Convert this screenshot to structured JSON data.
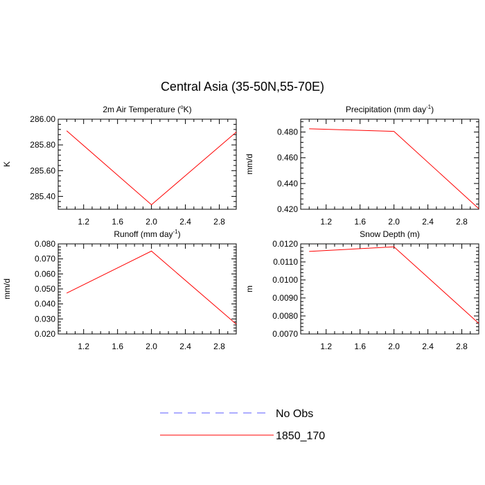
{
  "title": "Central Asia (35-50N,55-70E)",
  "legend": [
    {
      "name": "No Obs",
      "color": "#5a5aff",
      "style": "dashed"
    },
    {
      "name": "1850_170",
      "color": "#ff0000",
      "style": "solid"
    }
  ],
  "chart_data": [
    {
      "type": "line",
      "title": "2m Air Temperature (°K)",
      "title_main": "2m Air Temperature (",
      "title_sup": "o",
      "title_end": "K)",
      "xlabel": "",
      "ylabel": "K",
      "xlim": [
        0.9,
        3.0
      ],
      "ylim": [
        285.3,
        286.0
      ],
      "xticks": [
        "1.2",
        "1.6",
        "2.0",
        "2.4",
        "2.8"
      ],
      "yticks": [
        "285.40",
        "285.60",
        "285.80",
        "286.00"
      ],
      "series": [
        {
          "name": "1850_170",
          "x": [
            1,
            2,
            3
          ],
          "y": [
            285.91,
            285.335,
            285.9
          ],
          "color": "#ff0000"
        }
      ]
    },
    {
      "type": "line",
      "title": "Precipitation (mm day-1)",
      "title_main": "Precipitation (mm day",
      "title_sup": "-1",
      "title_end": ")",
      "xlabel": "",
      "ylabel": "mm/d",
      "xlim": [
        0.9,
        3.0
      ],
      "ylim": [
        0.42,
        0.49
      ],
      "xticks": [
        "1.2",
        "1.6",
        "2.0",
        "2.4",
        "2.8"
      ],
      "yticks": [
        "0.420",
        "0.440",
        "0.460",
        "0.480"
      ],
      "series": [
        {
          "name": "1850_170",
          "x": [
            1,
            2,
            3
          ],
          "y": [
            0.4825,
            0.4805,
            0.4205
          ],
          "color": "#ff0000"
        }
      ]
    },
    {
      "type": "line",
      "title": "Runoff (mm day-1)",
      "title_main": "Runoff (mm day",
      "title_sup": "-1",
      "title_end": ")",
      "xlabel": "",
      "ylabel": "mm/d",
      "xlim": [
        0.9,
        3.0
      ],
      "ylim": [
        0.02,
        0.08
      ],
      "xticks": [
        "1.2",
        "1.6",
        "2.0",
        "2.4",
        "2.8"
      ],
      "yticks": [
        "0.020",
        "0.030",
        "0.040",
        "0.050",
        "0.060",
        "0.070",
        "0.080"
      ],
      "series": [
        {
          "name": "1850_170",
          "x": [
            1,
            2,
            3
          ],
          "y": [
            0.0472,
            0.0752,
            0.0265
          ],
          "color": "#ff0000"
        }
      ]
    },
    {
      "type": "line",
      "title": "Snow Depth (m)",
      "title_main": "Snow Depth (m)",
      "title_sup": "",
      "title_end": "",
      "xlabel": "",
      "ylabel": "m",
      "xlim": [
        0.9,
        3.0
      ],
      "ylim": [
        0.007,
        0.012
      ],
      "xticks": [
        "1.2",
        "1.6",
        "2.0",
        "2.4",
        "2.8"
      ],
      "yticks": [
        "0.0070",
        "0.0080",
        "0.0090",
        "0.0100",
        "0.0110",
        "0.0120"
      ],
      "series": [
        {
          "name": "1850_170",
          "x": [
            1,
            2,
            3
          ],
          "y": [
            0.01158,
            0.01184,
            0.00759
          ],
          "color": "#ff0000"
        }
      ]
    }
  ]
}
